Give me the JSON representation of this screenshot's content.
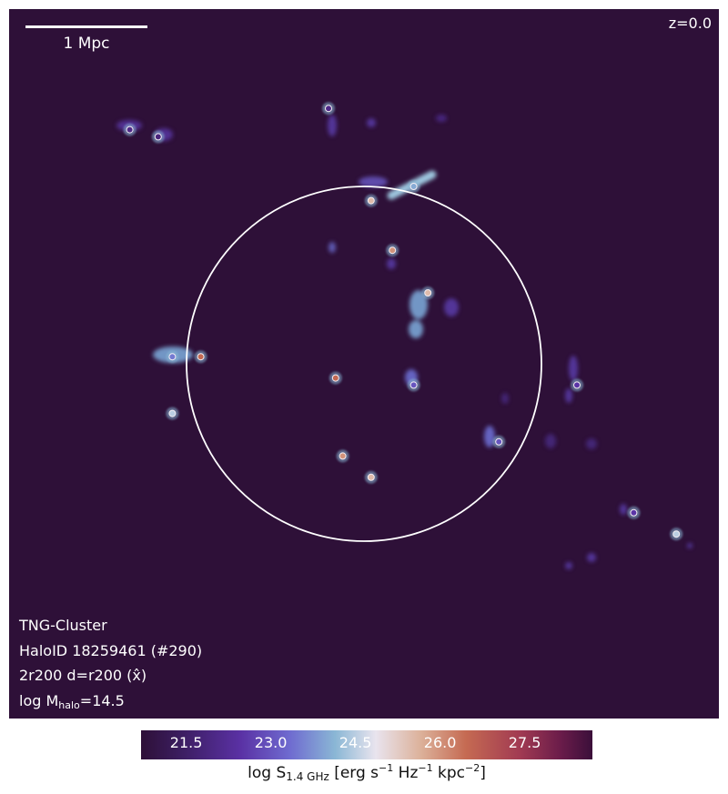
{
  "panel": {
    "background_color": "#2e1038",
    "scalebar_label": "1 Mpc",
    "redshift_label": "z=0.0",
    "info": {
      "simulation": "TNG-Cluster",
      "halo": "HaloID 18259461 (#290)",
      "projection": "2r200 d=r200 (x̂)",
      "mass_prefix": "log M",
      "mass_sub": "halo",
      "mass_value": "=14.5"
    }
  },
  "colorbar": {
    "ticks": [
      "21.5",
      "23.0",
      "24.5",
      "26.0",
      "27.5"
    ],
    "tick_values": [
      21.5,
      23.0,
      24.5,
      26.0,
      27.5
    ],
    "range": [
      20.7,
      28.7
    ],
    "label_main": "log S",
    "label_sub": "1.4 GHz",
    "label_unit_open": "[erg s",
    "label_exp1": "−1",
    "label_hz": "Hz",
    "label_exp2": "−1",
    "label_kpc": "kpc",
    "label_exp3": "−2",
    "label_close": "]"
  },
  "chart_data": {
    "type": "heatmap",
    "title": "",
    "xlabel": "",
    "ylabel": "",
    "colormap_range": [
      20.7,
      28.7
    ],
    "r200_circle": true,
    "sources": [
      {
        "x": 0.17,
        "y": 0.17,
        "level": 22.0
      },
      {
        "x": 0.21,
        "y": 0.18,
        "level": 21.8
      },
      {
        "x": 0.45,
        "y": 0.14,
        "level": 22.0
      },
      {
        "x": 0.57,
        "y": 0.25,
        "level": 24.0
      },
      {
        "x": 0.51,
        "y": 0.27,
        "level": 25.5
      },
      {
        "x": 0.54,
        "y": 0.34,
        "level": 26.0
      },
      {
        "x": 0.59,
        "y": 0.4,
        "level": 25.5
      },
      {
        "x": 0.27,
        "y": 0.49,
        "level": 26.5
      },
      {
        "x": 0.23,
        "y": 0.49,
        "level": 23.5
      },
      {
        "x": 0.46,
        "y": 0.52,
        "level": 26.5
      },
      {
        "x": 0.47,
        "y": 0.63,
        "level": 26.0
      },
      {
        "x": 0.51,
        "y": 0.66,
        "level": 25.5
      },
      {
        "x": 0.23,
        "y": 0.57,
        "level": 24.5
      },
      {
        "x": 0.57,
        "y": 0.53,
        "level": 23.0
      },
      {
        "x": 0.69,
        "y": 0.61,
        "level": 23.0
      },
      {
        "x": 0.8,
        "y": 0.53,
        "level": 22.5
      },
      {
        "x": 0.94,
        "y": 0.74,
        "level": 24.5
      },
      {
        "x": 0.88,
        "y": 0.71,
        "level": 22.5
      }
    ]
  }
}
